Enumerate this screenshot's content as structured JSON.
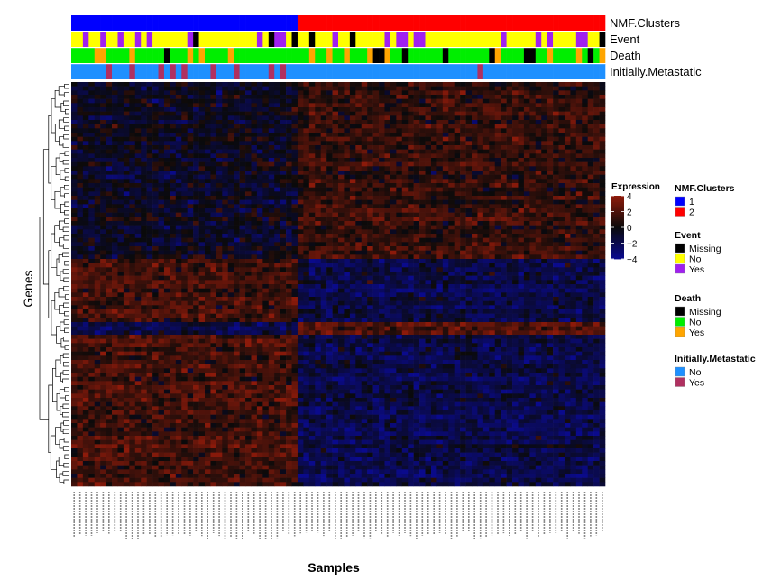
{
  "chart_data": {
    "type": "heatmap",
    "title": "",
    "xlabel": "Samples",
    "ylabel": "Genes",
    "color_scale": {
      "title": "Expression",
      "min": -4,
      "max": 4,
      "ticks": [
        "4",
        "2",
        "0",
        "−2",
        "−4"
      ],
      "low_color": "#0a0a8c",
      "mid_color": "#0a0a0a",
      "high_color": "#8c1a0a"
    },
    "n_samples": 92,
    "n_genes": 96,
    "cluster_split_sample": 39,
    "annotation_tracks": [
      {
        "label": "NMF.Clusters"
      },
      {
        "label": "Event"
      },
      {
        "label": "Death"
      },
      {
        "label": "Initially.Metastatic"
      }
    ],
    "legends": [
      {
        "title": "NMF.Clusters",
        "items": [
          {
            "label": "1",
            "color": "#0000ff"
          },
          {
            "label": "2",
            "color": "#ff0000"
          }
        ]
      },
      {
        "title": "Event",
        "items": [
          {
            "label": "Missing",
            "color": "#000000"
          },
          {
            "label": "No",
            "color": "#ffff00"
          },
          {
            "label": "Yes",
            "color": "#a020f0"
          }
        ]
      },
      {
        "title": "Death",
        "items": [
          {
            "label": "Missing",
            "color": "#000000"
          },
          {
            "label": "No",
            "color": "#00ee00"
          },
          {
            "label": "Yes",
            "color": "#ffa500"
          }
        ]
      },
      {
        "title": "Initially.Metastatic",
        "items": [
          {
            "label": "No",
            "color": "#1e90ff"
          },
          {
            "label": "Yes",
            "color": "#b03060"
          }
        ]
      }
    ],
    "heatmap_pattern": [
      {
        "genes": "top block",
        "cluster_1": "near 0 / slightly low",
        "cluster_2": "positive (red)"
      },
      {
        "genes": "bottom block",
        "cluster_1": "positive (red)",
        "cluster_2": "negative (blue)"
      }
    ]
  }
}
